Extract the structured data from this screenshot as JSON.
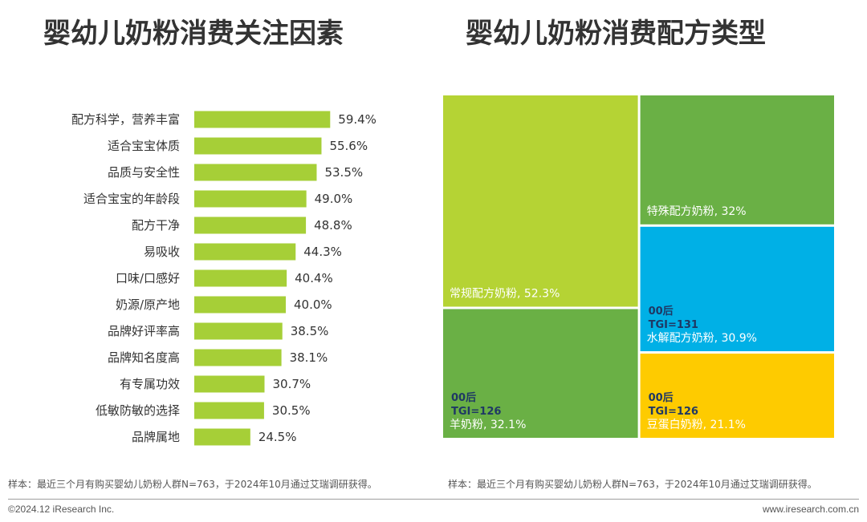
{
  "titles": {
    "left": "婴幼儿奶粉消费关注因素",
    "right": "婴幼儿奶粉消费配方类型"
  },
  "chart_data": [
    {
      "type": "bar",
      "orientation": "horizontal",
      "title": "婴幼儿奶粉消费关注因素",
      "categories": [
        "配方科学，营养丰富",
        "适合宝宝体质",
        "品质与安全性",
        "适合宝宝的年龄段",
        "配方干净",
        "易吸收",
        "口味/口感好",
        "奶源/原产地",
        "品牌好评率高",
        "品牌知名度高",
        "有专属功效",
        "低敏防敏的选择",
        "品牌属地"
      ],
      "values": [
        59.4,
        55.6,
        53.5,
        49.0,
        48.8,
        44.3,
        40.4,
        40.0,
        38.5,
        38.1,
        30.7,
        30.5,
        24.5
      ],
      "labels": [
        "59.4%",
        "55.6%",
        "53.5%",
        "49.0%",
        "48.8%",
        "44.3%",
        "40.4%",
        "40.0%",
        "38.5%",
        "38.1%",
        "30.7%",
        "30.5%",
        "24.5%"
      ],
      "unit": "%",
      "bar_color": "#a6cf37"
    },
    {
      "type": "treemap",
      "title": "婴幼儿奶粉消费配方类型",
      "items": [
        {
          "name": "常规配方奶粉",
          "value": 52.3,
          "label": "常规配方奶粉, 52.3%",
          "color": "#b5d334"
        },
        {
          "name": "羊奶粉",
          "value": 32.1,
          "label": "羊奶粉, 32.1%",
          "color": "#6ab045",
          "tgi_group": "00后",
          "tgi": "TGI=126"
        },
        {
          "name": "特殊配方奶粉",
          "value": 32,
          "label": "特殊配方奶粉, 32%",
          "color": "#6ab045"
        },
        {
          "name": "水解配方奶粉",
          "value": 30.9,
          "label": "水解配方奶粉, 30.9%",
          "color": "#00b0e6",
          "tgi_group": "00后",
          "tgi": "TGI=131"
        },
        {
          "name": "豆蛋白奶粉",
          "value": 21.1,
          "label": "豆蛋白奶粉, 21.1%",
          "color": "#fecb00",
          "tgi_group": "00后",
          "tgi": "TGI=126"
        }
      ]
    }
  ],
  "notes": {
    "left": "样本：最近三个月有购买婴幼儿奶粉人群N=763，于2024年10月通过艾瑞调研获得。",
    "right": "样本：最近三个月有购买婴幼儿奶粉人群N=763，于2024年10月通过艾瑞调研获得。"
  },
  "footer": {
    "copyright": "©2024.12 iResearch Inc.",
    "website": "www.iresearch.com.cn"
  }
}
